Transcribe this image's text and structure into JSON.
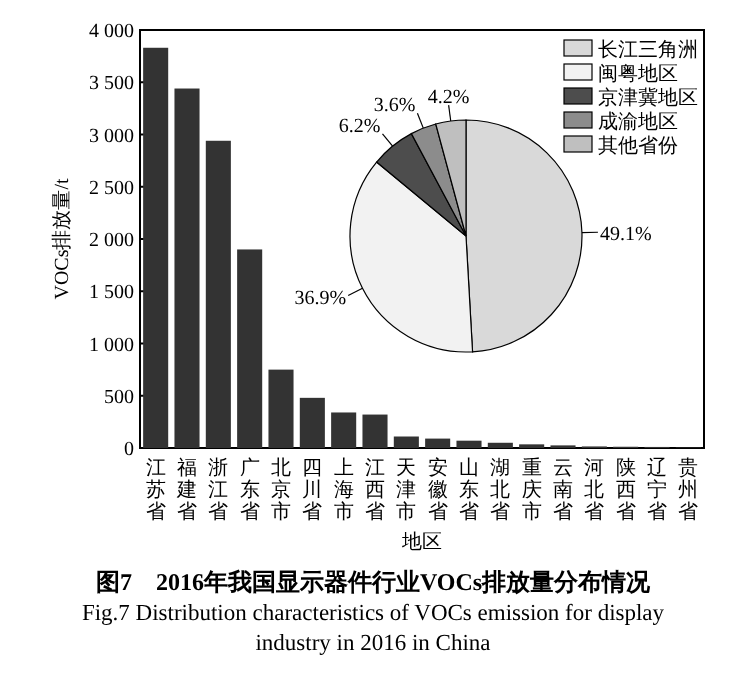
{
  "chart_data": [
    {
      "type": "bar",
      "title": "图7　2016年我国显示器件行业VOCs排放量分布情况",
      "subtitle": "Fig.7 Distribution characteristics of VOCs emission for display industry in 2016 in China",
      "xlabel": "地区",
      "ylabel": "VOCs排放量/t",
      "categories": [
        "江苏省",
        "福建省",
        "浙江省",
        "广东省",
        "北京市",
        "四川省",
        "上海市",
        "江西省",
        "天津市",
        "安徽省",
        "山东省",
        "湖北省",
        "重庆市",
        "云南省",
        "河北省",
        "陕西省",
        "辽宁省",
        "贵州省"
      ],
      "values": [
        3830,
        3440,
        2940,
        1900,
        750,
        480,
        340,
        320,
        110,
        90,
        70,
        50,
        35,
        25,
        15,
        12,
        10,
        5
      ],
      "color": "#333333",
      "ylim": [
        0,
        4000
      ],
      "yticks": [
        0,
        {
          "value": 500,
          "label": "500"
        },
        {
          "value": 1000,
          "label": "1 000"
        },
        {
          "value": 1500,
          "label": "1 500"
        },
        {
          "value": 2000,
          "label": "2 000"
        },
        {
          "value": 2500,
          "label": "2 500"
        },
        {
          "value": 3000,
          "label": "3 000"
        },
        {
          "value": 3500,
          "label": "3 500"
        },
        {
          "value": 4000,
          "label": "4 000"
        }
      ]
    },
    {
      "type": "pie",
      "categories": [
        "长江三角洲",
        "闽粤地区",
        "京津冀地区",
        "成渝地区",
        "其他省份"
      ],
      "values": [
        49.1,
        36.9,
        6.2,
        3.6,
        4.2
      ],
      "value_labels": [
        "49.1%",
        "36.9%",
        "6.2%",
        "3.6%",
        "4.2%"
      ],
      "colors": [
        "#d9d9d9",
        "#f2f2f2",
        "#4d4d4d",
        "#8c8c8c",
        "#bfbfbf"
      ],
      "legend": "top right"
    }
  ]
}
